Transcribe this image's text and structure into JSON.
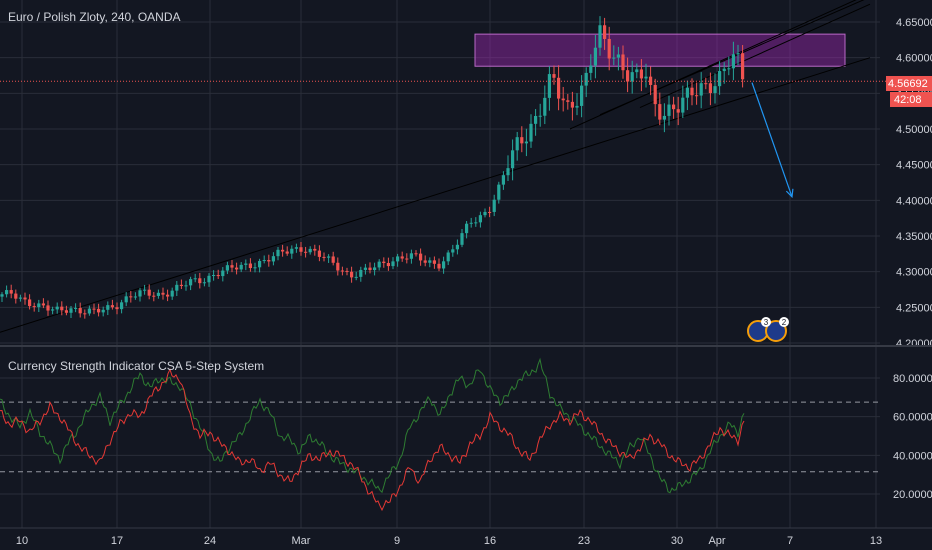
{
  "main_title": "Euro / Polish Zloty, 240, OANDA",
  "indicator_title": "Currency Strength Indicator CSA 5-Step System",
  "price_tag": "4.56692",
  "countdown_tag": "42:08",
  "colors": {
    "background": "#131722",
    "grid": "#2a2e39",
    "up": "#26a69a",
    "down": "#ef5350",
    "zone": "#9c27b0",
    "arrow": "#2196f3",
    "last_price_line": "#ef5350",
    "strength_green": "#2e7d32",
    "strength_red": "#e53935"
  },
  "events_badge": {
    "count_a": "3",
    "count_b": "2"
  },
  "chart_data": [
    {
      "type": "candlestick",
      "title": "Euro / Polish Zloty, 240, OANDA",
      "ylim": [
        4.2,
        4.68
      ],
      "y_ticks": [
        4.2,
        4.25,
        4.3,
        4.35,
        4.4,
        4.45,
        4.5,
        4.55,
        4.6,
        4.65
      ],
      "y_tick_labels": [
        "4.20000",
        "4.25000",
        "4.30000",
        "4.35000",
        "4.40000",
        "4.45000",
        "4.50000",
        "4.55000",
        "4.60000",
        "4.65000"
      ],
      "x_ticks": [
        "10",
        "17",
        "24",
        "Mar",
        "9",
        "16",
        "23",
        "30",
        "Apr",
        "7",
        "13"
      ],
      "last_price": 4.56692,
      "price_path": [
        [
          0,
          4.265
        ],
        [
          12,
          4.27
        ],
        [
          25,
          4.26
        ],
        [
          40,
          4.25
        ],
        [
          55,
          4.245
        ],
        [
          70,
          4.25
        ],
        [
          80,
          4.245
        ],
        [
          92,
          4.242
        ],
        [
          105,
          4.248
        ],
        [
          118,
          4.255
        ],
        [
          130,
          4.265
        ],
        [
          145,
          4.27
        ],
        [
          160,
          4.268
        ],
        [
          175,
          4.275
        ],
        [
          190,
          4.285
        ],
        [
          205,
          4.29
        ],
        [
          220,
          4.3
        ],
        [
          235,
          4.305
        ],
        [
          250,
          4.31
        ],
        [
          265,
          4.315
        ],
        [
          280,
          4.325
        ],
        [
          292,
          4.332
        ],
        [
          305,
          4.333
        ],
        [
          320,
          4.322
        ],
        [
          335,
          4.31
        ],
        [
          350,
          4.295
        ],
        [
          365,
          4.3
        ],
        [
          380,
          4.31
        ],
        [
          395,
          4.318
        ],
        [
          410,
          4.322
        ],
        [
          425,
          4.315
        ],
        [
          438,
          4.31
        ],
        [
          450,
          4.325
        ],
        [
          460,
          4.345
        ],
        [
          470,
          4.37
        ],
        [
          478,
          4.375
        ],
        [
          490,
          4.39
        ],
        [
          500,
          4.42
        ],
        [
          508,
          4.45
        ],
        [
          518,
          4.48
        ],
        [
          528,
          4.5
        ],
        [
          538,
          4.52
        ],
        [
          546,
          4.55
        ],
        [
          552,
          4.57
        ],
        [
          560,
          4.545
        ],
        [
          568,
          4.53
        ],
        [
          578,
          4.55
        ],
        [
          586,
          4.57
        ],
        [
          594,
          4.61
        ],
        [
          600,
          4.63
        ],
        [
          608,
          4.61
        ],
        [
          618,
          4.6
        ],
        [
          628,
          4.58
        ],
        [
          638,
          4.57
        ],
        [
          646,
          4.575
        ],
        [
          654,
          4.53
        ],
        [
          662,
          4.525
        ],
        [
          670,
          4.53
        ],
        [
          680,
          4.535
        ],
        [
          690,
          4.545
        ],
        [
          700,
          4.555
        ],
        [
          710,
          4.565
        ],
        [
          720,
          4.575
        ],
        [
          730,
          4.595
        ],
        [
          736,
          4.6
        ],
        [
          742,
          4.57
        ]
      ],
      "channel_lines": [
        {
          "x": [
            0,
            870
          ],
          "y": [
            4.215,
            4.6
          ]
        },
        {
          "x": [
            570,
            870
          ],
          "y": [
            4.5,
            4.69
          ]
        },
        {
          "x": [
            600,
            870
          ],
          "y": [
            4.52,
            4.685
          ]
        },
        {
          "x": [
            640,
            870
          ],
          "y": [
            4.53,
            4.675
          ]
        }
      ],
      "resistance_zone": {
        "x": [
          475,
          845
        ],
        "y": [
          4.588,
          4.633
        ]
      },
      "projection_arrow": {
        "x": [
          752,
          792
        ],
        "y": [
          4.565,
          4.405
        ]
      }
    },
    {
      "type": "line",
      "title": "Currency Strength Indicator CSA 5-Step System",
      "ylim": [
        10,
        90
      ],
      "y_ticks": [
        20,
        40,
        60,
        80
      ],
      "y_tick_labels": [
        "20.00000",
        "40.00000",
        "60.00000",
        "80.00000"
      ],
      "levels": [
        67.5,
        31.5
      ],
      "series_green": [
        [
          0,
          68
        ],
        [
          10,
          60
        ],
        [
          20,
          55
        ],
        [
          30,
          62
        ],
        [
          40,
          52
        ],
        [
          50,
          45
        ],
        [
          60,
          38
        ],
        [
          70,
          48
        ],
        [
          80,
          55
        ],
        [
          90,
          65
        ],
        [
          100,
          70
        ],
        [
          110,
          58
        ],
        [
          120,
          66
        ],
        [
          130,
          74
        ],
        [
          140,
          82
        ],
        [
          150,
          75
        ],
        [
          160,
          80
        ],
        [
          170,
          78
        ],
        [
          180,
          76
        ],
        [
          190,
          66
        ],
        [
          200,
          55
        ],
        [
          210,
          42
        ],
        [
          220,
          36
        ],
        [
          230,
          45
        ],
        [
          240,
          50
        ],
        [
          250,
          60
        ],
        [
          260,
          68
        ],
        [
          270,
          62
        ],
        [
          280,
          50
        ],
        [
          290,
          48
        ],
        [
          300,
          42
        ],
        [
          310,
          50
        ],
        [
          320,
          46
        ],
        [
          330,
          40
        ],
        [
          340,
          36
        ],
        [
          350,
          33
        ],
        [
          360,
          30
        ],
        [
          370,
          26
        ],
        [
          380,
          22
        ],
        [
          390,
          30
        ],
        [
          400,
          38
        ],
        [
          410,
          55
        ],
        [
          420,
          62
        ],
        [
          430,
          70
        ],
        [
          440,
          60
        ],
        [
          450,
          72
        ],
        [
          460,
          80
        ],
        [
          470,
          76
        ],
        [
          480,
          85
        ],
        [
          490,
          74
        ],
        [
          500,
          68
        ],
        [
          510,
          72
        ],
        [
          520,
          80
        ],
        [
          530,
          82
        ],
        [
          540,
          88
        ],
        [
          550,
          72
        ],
        [
          560,
          64
        ],
        [
          570,
          60
        ],
        [
          580,
          55
        ],
        [
          590,
          50
        ],
        [
          600,
          45
        ],
        [
          610,
          40
        ],
        [
          620,
          36
        ],
        [
          630,
          44
        ],
        [
          640,
          50
        ],
        [
          650,
          40
        ],
        [
          660,
          28
        ],
        [
          670,
          22
        ],
        [
          680,
          24
        ],
        [
          690,
          28
        ],
        [
          700,
          32
        ],
        [
          710,
          42
        ],
        [
          720,
          50
        ],
        [
          730,
          56
        ],
        [
          738,
          52
        ],
        [
          744,
          62
        ]
      ],
      "series_red": [
        [
          0,
          62
        ],
        [
          10,
          56
        ],
        [
          20,
          58
        ],
        [
          30,
          52
        ],
        [
          40,
          58
        ],
        [
          50,
          65
        ],
        [
          60,
          60
        ],
        [
          70,
          52
        ],
        [
          80,
          44
        ],
        [
          90,
          40
        ],
        [
          100,
          36
        ],
        [
          110,
          48
        ],
        [
          120,
          56
        ],
        [
          130,
          62
        ],
        [
          140,
          60
        ],
        [
          150,
          70
        ],
        [
          160,
          76
        ],
        [
          170,
          82
        ],
        [
          180,
          80
        ],
        [
          190,
          60
        ],
        [
          200,
          50
        ],
        [
          210,
          52
        ],
        [
          220,
          46
        ],
        [
          230,
          42
        ],
        [
          240,
          36
        ],
        [
          250,
          38
        ],
        [
          260,
          32
        ],
        [
          270,
          36
        ],
        [
          280,
          30
        ],
        [
          290,
          26
        ],
        [
          300,
          34
        ],
        [
          310,
          40
        ],
        [
          320,
          38
        ],
        [
          330,
          42
        ],
        [
          340,
          40
        ],
        [
          350,
          36
        ],
        [
          360,
          30
        ],
        [
          370,
          20
        ],
        [
          380,
          14
        ],
        [
          390,
          16
        ],
        [
          400,
          24
        ],
        [
          410,
          34
        ],
        [
          420,
          26
        ],
        [
          430,
          38
        ],
        [
          440,
          44
        ],
        [
          450,
          40
        ],
        [
          460,
          36
        ],
        [
          470,
          46
        ],
        [
          480,
          50
        ],
        [
          490,
          60
        ],
        [
          500,
          55
        ],
        [
          510,
          50
        ],
        [
          520,
          42
        ],
        [
          530,
          38
        ],
        [
          540,
          48
        ],
        [
          550,
          56
        ],
        [
          560,
          60
        ],
        [
          570,
          58
        ],
        [
          580,
          62
        ],
        [
          590,
          58
        ],
        [
          600,
          52
        ],
        [
          610,
          46
        ],
        [
          620,
          42
        ],
        [
          630,
          38
        ],
        [
          640,
          44
        ],
        [
          650,
          50
        ],
        [
          660,
          46
        ],
        [
          670,
          40
        ],
        [
          680,
          36
        ],
        [
          690,
          34
        ],
        [
          700,
          38
        ],
        [
          710,
          46
        ],
        [
          720,
          54
        ],
        [
          730,
          50
        ],
        [
          738,
          48
        ],
        [
          744,
          58
        ]
      ]
    }
  ]
}
